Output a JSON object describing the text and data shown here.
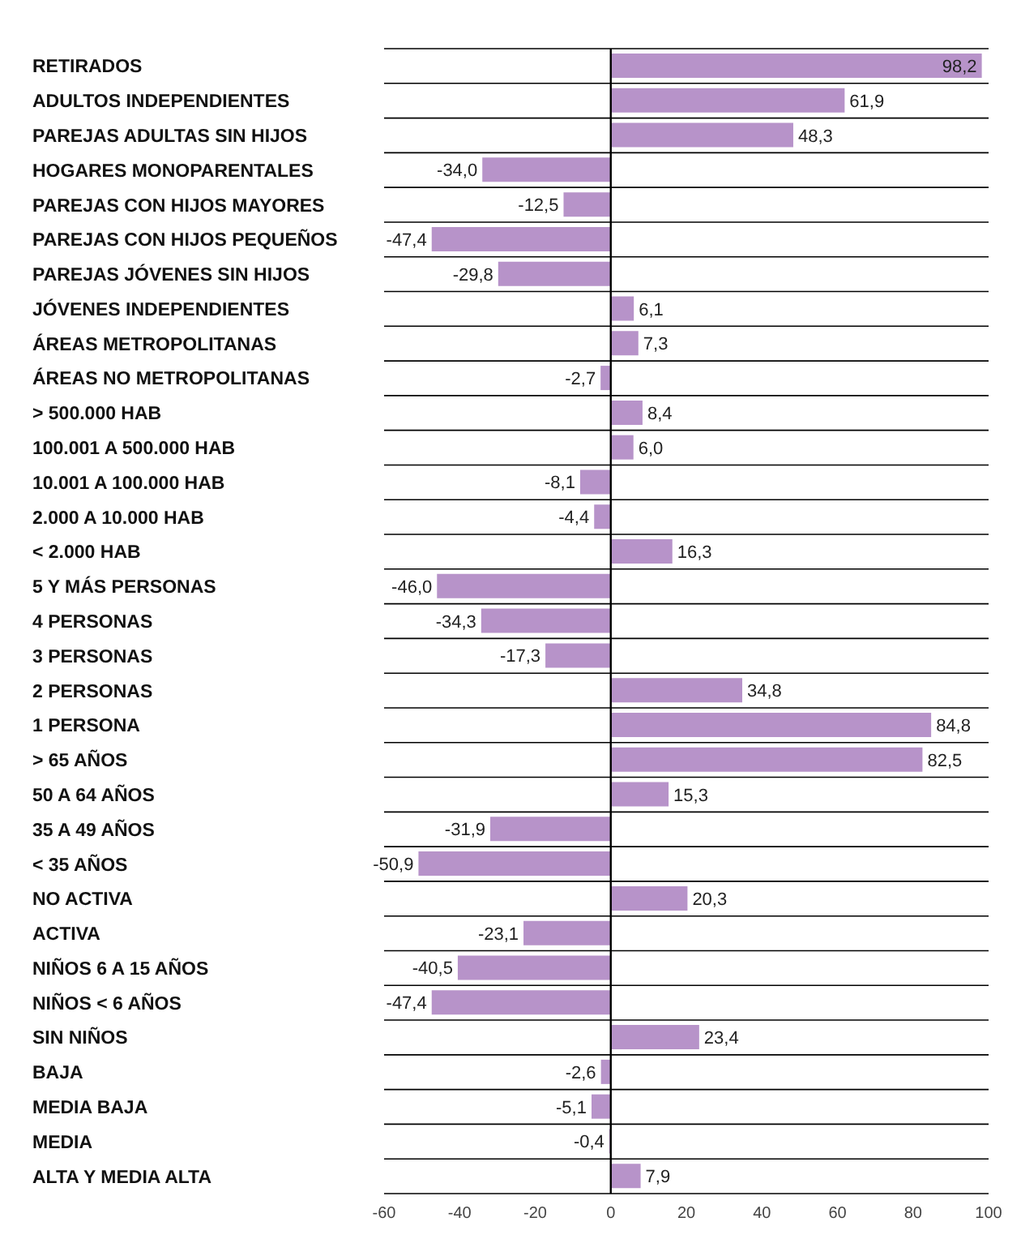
{
  "chart_data": {
    "type": "bar",
    "orientation": "horizontal",
    "categories": [
      "RETIRADOS",
      "ADULTOS INDEPENDIENTES",
      "PAREJAS ADULTAS SIN HIJOS",
      "HOGARES MONOPARENTALES",
      "PAREJAS CON HIJOS MAYORES",
      "PAREJAS CON HIJOS PEQUEÑOS",
      "PAREJAS JÓVENES SIN HIJOS",
      "JÓVENES INDEPENDIENTES",
      "ÁREAS METROPOLITANAS",
      "ÁREAS NO METROPOLITANAS",
      "> 500.000 HAB",
      "100.001 A 500.000 HAB",
      "10.001 A 100.000 HAB",
      "2.000 A 10.000 HAB",
      "< 2.000 HAB",
      "5 Y MÁS PERSONAS",
      "4 PERSONAS",
      "3 PERSONAS",
      "2 PERSONAS",
      "1 PERSONA",
      "> 65 AÑOS",
      "50 A 64 AÑOS",
      "35 A 49 AÑOS",
      "< 35 AÑOS",
      "NO ACTIVA",
      "ACTIVA",
      "NIÑOS 6 A 15 AÑOS",
      "NIÑOS < 6 AÑOS",
      "SIN NIÑOS",
      "BAJA",
      "MEDIA BAJA",
      "MEDIA",
      "ALTA Y MEDIA ALTA"
    ],
    "values": [
      98.2,
      61.9,
      48.3,
      -34.0,
      -12.5,
      -47.4,
      -29.8,
      6.1,
      7.3,
      -2.7,
      8.4,
      6.0,
      -8.1,
      -4.4,
      16.3,
      -46.0,
      -34.3,
      -17.3,
      34.8,
      84.8,
      82.5,
      15.3,
      -31.9,
      -50.9,
      20.3,
      -23.1,
      -40.5,
      -47.4,
      23.4,
      -2.6,
      -5.1,
      -0.4,
      7.9
    ],
    "value_labels": [
      "98,2",
      "61,9",
      "48,3",
      "-34,0",
      "-12,5",
      "-47,4",
      "-29,8",
      "6,1",
      "7,3",
      "-2,7",
      "8,4",
      "6,0",
      "-8,1",
      "-4,4",
      "16,3",
      "-46,0",
      "-34,3",
      "-17,3",
      "34,8",
      "84,8",
      "82,5",
      "15,3",
      "-31,9",
      "-50,9",
      "20,3",
      "-23,1",
      "-40,5",
      "-47,4",
      "23,4",
      "-2,6",
      "-5,1",
      "-0,4",
      "7,9"
    ],
    "color": "#b793c9",
    "xlim": [
      -60,
      100
    ],
    "xticks": [
      -60,
      -40,
      -20,
      0,
      20,
      40,
      60,
      80,
      100
    ],
    "grid": "y",
    "ref_lines": [
      {
        "axis": "x",
        "value": 0,
        "color": "#000000"
      }
    ]
  }
}
